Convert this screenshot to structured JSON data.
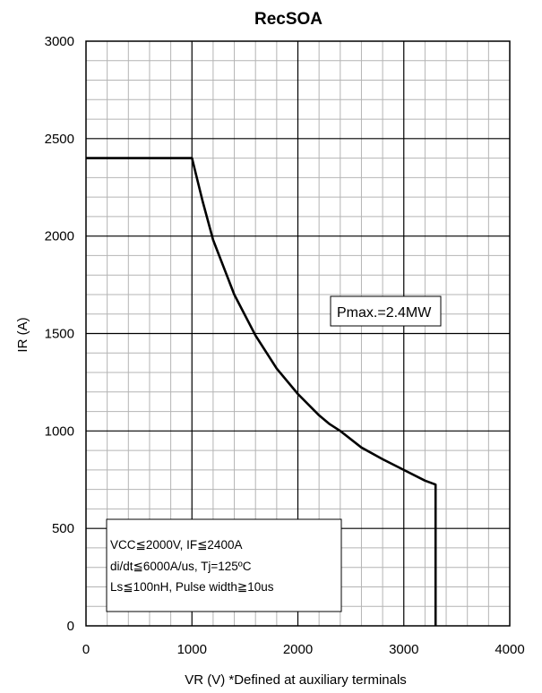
{
  "chart_data": {
    "type": "line",
    "title": "RecSOA",
    "xlabel": "VR (V)  *Defined at auxiliary terminals",
    "ylabel": "IR (A)",
    "xlim": [
      0,
      4000
    ],
    "ylim": [
      0,
      3000
    ],
    "x_ticks": [
      "0",
      "1000",
      "2000",
      "3000",
      "4000"
    ],
    "y_ticks": [
      "0",
      "500",
      "1000",
      "1500",
      "2000",
      "2500",
      "3000"
    ],
    "grid": true,
    "series": [
      {
        "x": [
          0,
          1000,
          1100,
          1200,
          1400,
          1600,
          1800,
          2000,
          2200,
          2300,
          2400,
          2600,
          2800,
          3000,
          3200,
          3300,
          3300
        ],
        "y": [
          2400,
          2400,
          2180,
          1980,
          1700,
          1490,
          1320,
          1190,
          1080,
          1035,
          1000,
          915,
          855,
          800,
          745,
          725,
          0
        ]
      }
    ],
    "annotations": {
      "pmax": "Pmax.=2.4MW",
      "conditions": [
        "VCC≦2000V, IF≦2400A",
        "di/dt≦6000A/us, Tj=125ºC",
        "Ls≦100nH, Pulse width≧10us"
      ]
    }
  }
}
